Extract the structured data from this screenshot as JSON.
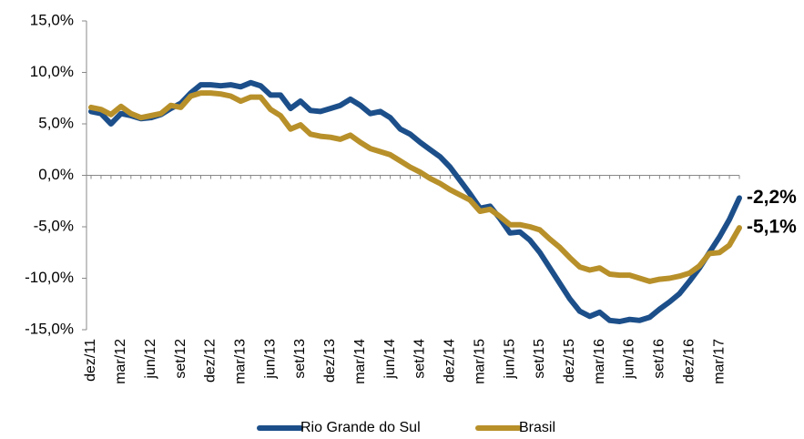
{
  "chart_data": {
    "type": "line",
    "categories": [
      "dez/11",
      null,
      null,
      "mar/12",
      null,
      null,
      "jun/12",
      null,
      null,
      "set/12",
      null,
      null,
      "dez/12",
      null,
      null,
      "mar/13",
      null,
      null,
      "jun/13",
      null,
      null,
      "set/13",
      null,
      null,
      "dez/13",
      null,
      null,
      "mar/14",
      null,
      null,
      "jun/14",
      null,
      null,
      "set/14",
      null,
      null,
      "dez/14",
      null,
      null,
      "mar/15",
      null,
      null,
      "jun/15",
      null,
      null,
      "set/15",
      null,
      null,
      "dez/15",
      null,
      null,
      "mar/16",
      null,
      null,
      "jun/16",
      null,
      null,
      "set/16",
      null,
      null,
      "dez/16",
      null,
      null,
      "mar/17",
      null,
      null
    ],
    "series": [
      {
        "name": "Rio Grande do Sul",
        "color": "#1c4f8a",
        "values": [
          6.2,
          6.0,
          5.0,
          6.0,
          5.8,
          5.5,
          5.6,
          5.9,
          6.5,
          7.0,
          8.0,
          8.8,
          8.8,
          8.7,
          8.8,
          8.6,
          9.0,
          8.7,
          7.8,
          7.8,
          6.5,
          7.2,
          6.3,
          6.2,
          6.5,
          6.8,
          7.4,
          6.8,
          6.0,
          6.2,
          5.6,
          4.5,
          4.0,
          3.2,
          2.5,
          1.8,
          0.8,
          -0.5,
          -1.8,
          -3.2,
          -3.0,
          -4.2,
          -5.6,
          -5.5,
          -6.3,
          -7.5,
          -9.0,
          -10.5,
          -12.0,
          -13.2,
          -13.7,
          -13.3,
          -14.1,
          -14.2,
          -14.0,
          -14.1,
          -13.8,
          -13.0,
          -12.3,
          -11.5,
          -10.3,
          -9.0,
          -7.5,
          -6.0,
          -4.3,
          -2.2
        ],
        "value_labels": [
          null,
          null,
          null,
          null,
          null,
          null,
          null,
          null,
          null,
          null,
          null,
          null,
          null,
          null,
          null,
          null,
          null,
          null,
          null,
          null,
          null,
          null,
          null,
          null,
          null,
          null,
          null,
          null,
          null,
          null,
          null,
          null,
          null,
          null,
          null,
          null,
          null,
          null,
          null,
          null,
          null,
          null,
          null,
          null,
          null,
          null,
          null,
          null,
          null,
          null,
          null,
          null,
          null,
          null,
          null,
          null,
          null,
          null,
          null,
          null,
          null,
          null,
          null,
          null,
          null,
          "-2,2%"
        ]
      },
      {
        "name": "Brasil",
        "color": "#b8902a",
        "values": [
          6.6,
          6.4,
          5.9,
          6.7,
          6.0,
          5.6,
          5.8,
          6.0,
          6.8,
          6.6,
          7.7,
          8.0,
          8.0,
          7.9,
          7.7,
          7.2,
          7.6,
          7.6,
          6.4,
          5.8,
          4.5,
          4.9,
          4.0,
          3.8,
          3.7,
          3.5,
          3.9,
          3.2,
          2.6,
          2.3,
          2.0,
          1.4,
          0.8,
          0.3,
          -0.3,
          -0.8,
          -1.4,
          -1.9,
          -2.4,
          -3.5,
          -3.3,
          -4.0,
          -4.8,
          -4.8,
          -5.0,
          -5.3,
          -6.2,
          -7.0,
          -8.0,
          -8.9,
          -9.2,
          -9.0,
          -9.6,
          -9.7,
          -9.7,
          -10.0,
          -10.3,
          -10.1,
          -10.0,
          -9.8,
          -9.5,
          -8.8,
          -7.6,
          -7.5,
          -6.8,
          -5.1
        ],
        "value_labels": [
          null,
          null,
          null,
          null,
          null,
          null,
          null,
          null,
          null,
          null,
          null,
          null,
          null,
          null,
          null,
          null,
          null,
          null,
          null,
          null,
          null,
          null,
          null,
          null,
          null,
          null,
          null,
          null,
          null,
          null,
          null,
          null,
          null,
          null,
          null,
          null,
          null,
          null,
          null,
          null,
          null,
          null,
          null,
          null,
          null,
          null,
          null,
          null,
          null,
          null,
          null,
          null,
          null,
          null,
          null,
          null,
          null,
          null,
          null,
          null,
          null,
          null,
          null,
          null,
          null,
          "-5,1%"
        ]
      }
    ],
    "ylim": [
      -15,
      15
    ],
    "yticks": [
      {
        "value": -15,
        "label": "-15,0%"
      },
      {
        "value": -10,
        "label": "-10,0%"
      },
      {
        "value": -5,
        "label": "-5,0%"
      },
      {
        "value": 0,
        "label": "0,0%"
      },
      {
        "value": 5,
        "label": "5,0%"
      },
      {
        "value": 10,
        "label": "10,0%"
      },
      {
        "value": 15,
        "label": "15,0%"
      }
    ],
    "grid": false,
    "legend": "bottom"
  }
}
